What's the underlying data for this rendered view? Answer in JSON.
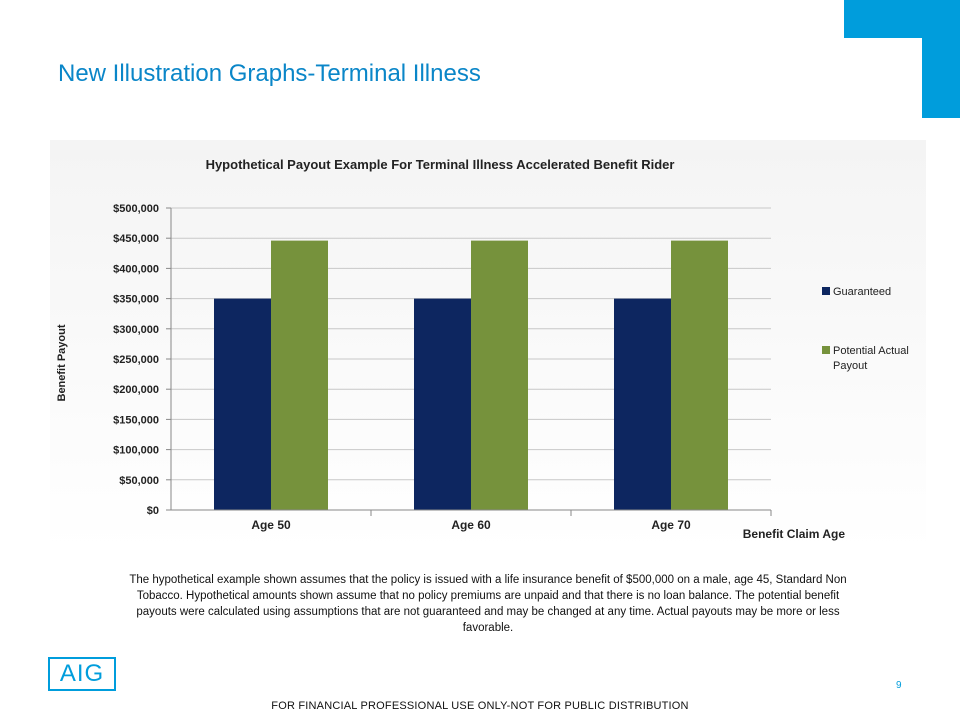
{
  "page": {
    "title": "New Illustration Graphs-Terminal Illness",
    "disclaimer": "The hypothetical example shown assumes that the policy is issued with a life insurance benefit of $500,000 on a male, age 45, Standard Non Tobacco. Hypothetical amounts shown assume that no policy premiums are unpaid and that there is no loan balance. The potential benefit payouts were calculated using assumptions that are not guaranteed and may be changed at any time. Actual payouts may be more or less favorable.",
    "logo_text": "AIG",
    "page_number": "9",
    "footer": "FOR FINANCIAL PROFESSIONAL USE ONLY-NOT FOR PUBLIC DISTRIBUTION"
  },
  "colors": {
    "accent": "#009ddc",
    "title": "#0a86c8",
    "guaranteed": "#0d2660",
    "potential": "#76923c"
  },
  "chart_data": {
    "type": "bar",
    "title": "Hypothetical Payout Example For Terminal Illness Accelerated Benefit Rider",
    "xlabel": "Benefit Claim Age",
    "ylabel": "Benefit Payout",
    "categories": [
      "Age 50",
      "Age 60",
      "Age 70"
    ],
    "series": [
      {
        "name": "Guaranteed",
        "values": [
          350000,
          350000,
          350000
        ]
      },
      {
        "name": "Potential Actual Payout",
        "values": [
          446000,
          446000,
          446000
        ]
      }
    ],
    "ylim": [
      0,
      500000
    ],
    "yticks": [
      0,
      50000,
      100000,
      150000,
      200000,
      250000,
      300000,
      350000,
      400000,
      450000,
      500000
    ],
    "ytick_labels": [
      "$0",
      "$50,000",
      "$100,000",
      "$150,000",
      "$200,000",
      "$250,000",
      "$300,000",
      "$350,000",
      "$400,000",
      "$450,000",
      "$500,000"
    ],
    "grid": true,
    "legend_position": "right"
  }
}
